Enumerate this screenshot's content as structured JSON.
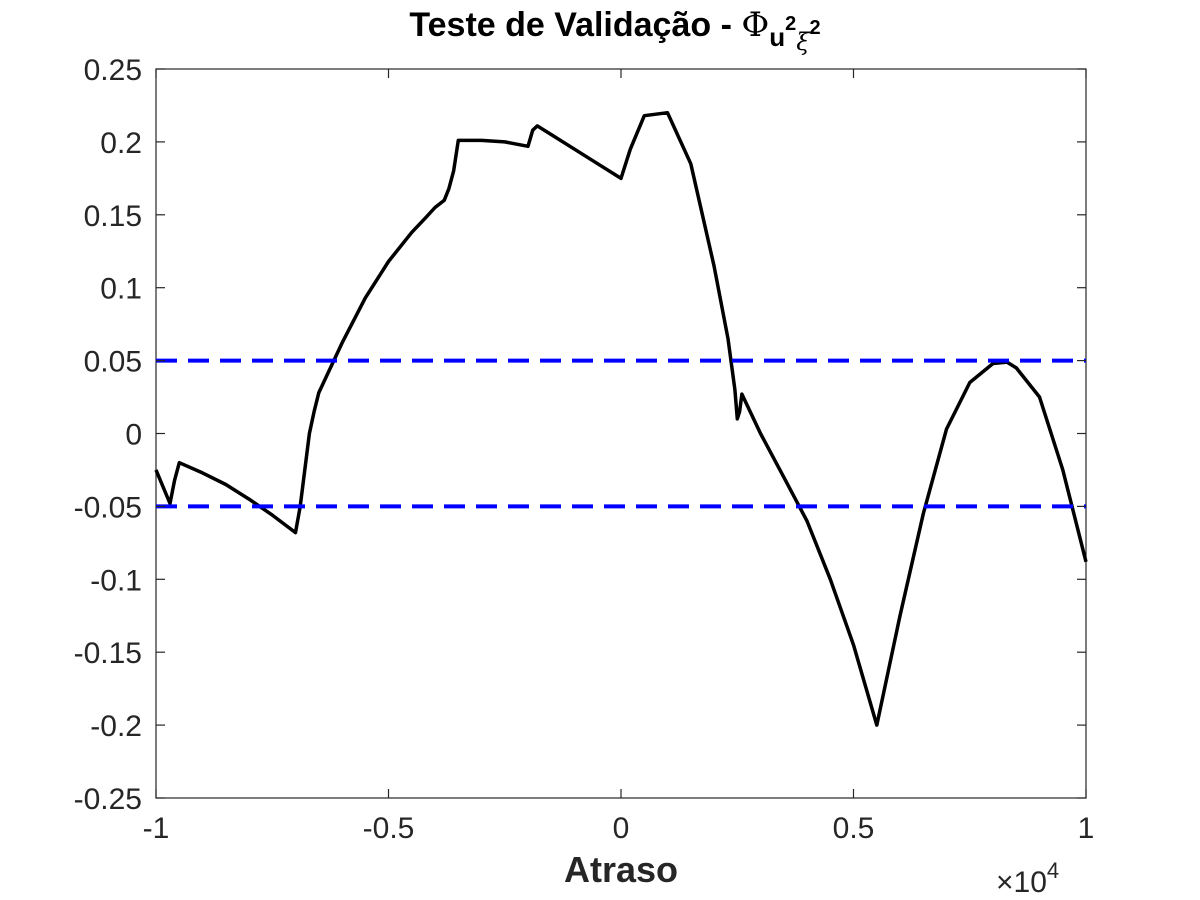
{
  "chart_data": {
    "type": "line",
    "title": {
      "main": "Teste de Validação - ",
      "symbol": "Φ",
      "sub1": "u",
      "sup1": "2",
      "sub2": "ξ",
      "sup2": "2"
    },
    "xlabel": "Atraso",
    "ylabel": "",
    "x_multiplier": {
      "times": "×",
      "base": "10",
      "exponent": "4"
    },
    "xlim": [
      -1,
      1
    ],
    "ylim": [
      -0.25,
      0.25
    ],
    "xticks": [
      -1,
      -0.5,
      0,
      0.5,
      1
    ],
    "xtick_labels": [
      "-1",
      "-0.5",
      "0",
      "0.5",
      "1"
    ],
    "yticks": [
      -0.25,
      -0.2,
      -0.15,
      -0.1,
      -0.05,
      0,
      0.05,
      0.1,
      0.15,
      0.2,
      0.25
    ],
    "ytick_labels": [
      "-0.25",
      "-0.2",
      "-0.15",
      "-0.1",
      "-0.05",
      "0",
      "0.05",
      "0.1",
      "0.15",
      "0.2",
      "0.25"
    ],
    "grid": false,
    "series": [
      {
        "style": "solid",
        "color": "#000000",
        "x": [
          -1,
          -0.97,
          -0.96,
          -0.95,
          -0.9,
          -0.85,
          -0.8,
          -0.75,
          -0.7,
          -0.69,
          -0.68,
          -0.67,
          -0.66,
          -0.65,
          -0.6,
          -0.55,
          -0.5,
          -0.45,
          -0.42,
          -0.4,
          -0.38,
          -0.37,
          -0.36,
          -0.35,
          -0.3,
          -0.25,
          -0.2,
          -0.19,
          -0.18,
          -0.15,
          -0.1,
          -0.05,
          0,
          0.02,
          0.05,
          0.1,
          0.15,
          0.2,
          0.23,
          0.245,
          0.25,
          0.255,
          0.26,
          0.3,
          0.35,
          0.4,
          0.45,
          0.5,
          0.55,
          0.6,
          0.65,
          0.7,
          0.75,
          0.8,
          0.83,
          0.85,
          0.9,
          0.95,
          1
        ],
        "y": [
          -0.025,
          -0.048,
          -0.032,
          -0.02,
          -0.027,
          -0.035,
          -0.045,
          -0.056,
          -0.068,
          -0.05,
          -0.025,
          0.0,
          0.015,
          0.028,
          0.062,
          0.093,
          0.118,
          0.138,
          0.148,
          0.155,
          0.16,
          0.168,
          0.18,
          0.201,
          0.201,
          0.2,
          0.197,
          0.208,
          0.211,
          0.205,
          0.195,
          0.185,
          0.175,
          0.195,
          0.218,
          0.22,
          0.185,
          0.115,
          0.065,
          0.03,
          0.01,
          0.015,
          0.027,
          0.0,
          -0.03,
          -0.06,
          -0.1,
          -0.145,
          -0.2,
          -0.125,
          -0.055,
          0.003,
          0.035,
          0.048,
          0.049,
          0.045,
          0.025,
          -0.025,
          -0.088
        ]
      },
      {
        "style": "dashed",
        "color": "#0000FF",
        "x": [
          -1,
          1
        ],
        "y": [
          0.05,
          0.05
        ]
      },
      {
        "style": "dashed",
        "color": "#0000FF",
        "x": [
          -1,
          1
        ],
        "y": [
          -0.05,
          -0.05
        ]
      }
    ]
  }
}
